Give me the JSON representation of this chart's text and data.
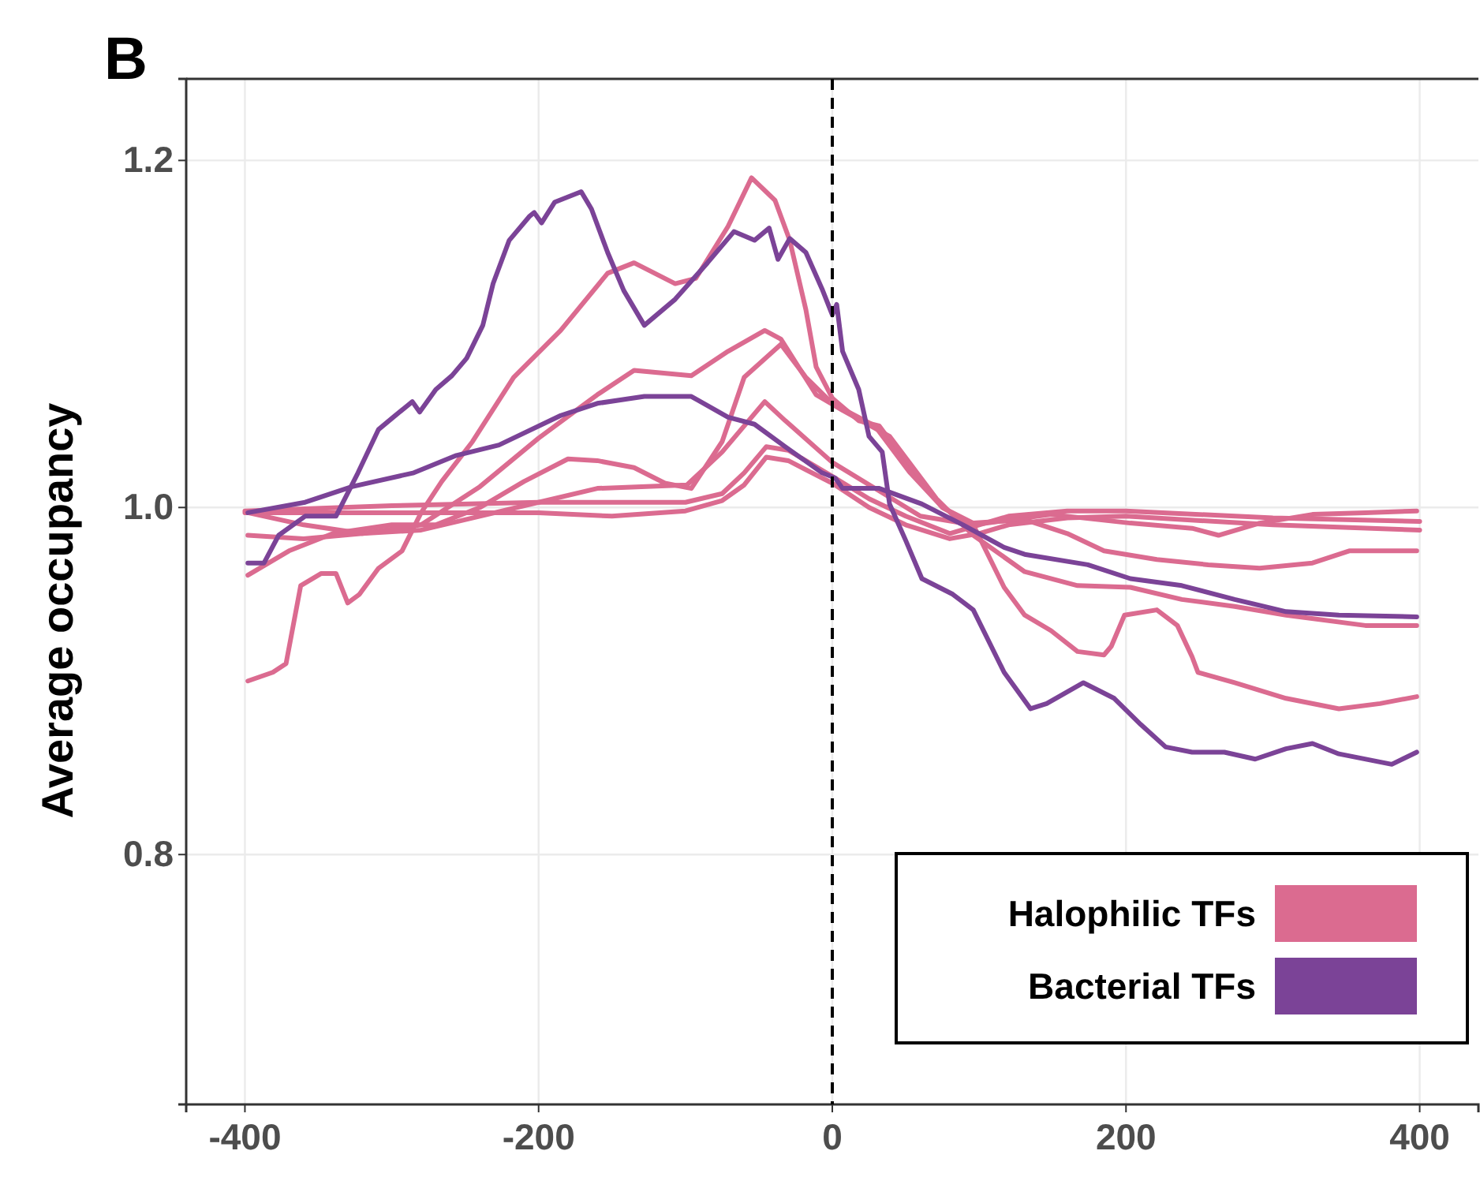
{
  "chart_data": {
    "type": "line",
    "title": "B",
    "ylabel": "Average occupancy",
    "xlim": [
      -440,
      440
    ],
    "ylim": [
      0.656,
      1.247
    ],
    "xticks": [
      -400,
      -200,
      0,
      200,
      400
    ],
    "yticks": [
      {
        "value": 0.8,
        "label": "0.8"
      },
      {
        "value": 1.0,
        "label": "1.0"
      },
      {
        "value": 1.2,
        "label": "1.2"
      }
    ],
    "grid": true,
    "legend": "bottom right",
    "line_style": "solid",
    "marker": "none",
    "ref_lines": [
      {
        "axis": "x",
        "value": 0,
        "color": "#000000",
        "line_style": "dashed"
      }
    ],
    "series": [
      {
        "name": "Halophilic TFs",
        "color": "#db6b90",
        "x": [
          -398,
          -381,
          -372,
          -362,
          -348,
          -338,
          -330,
          -322,
          -309,
          -293,
          -280,
          -266,
          -245,
          -217,
          -185,
          -153,
          -135,
          -107,
          -93,
          -71,
          -55,
          -39,
          -29,
          -18,
          -11,
          0,
          18,
          32,
          53,
          75,
          96,
          117,
          131,
          149,
          167,
          185,
          190,
          199,
          221,
          235,
          245,
          249,
          274,
          309,
          345,
          373,
          398
        ],
        "values": [
          0.9,
          0.905,
          0.91,
          0.955,
          0.962,
          0.962,
          0.945,
          0.95,
          0.965,
          0.975,
          0.997,
          1.015,
          1.038,
          1.075,
          1.102,
          1.135,
          1.141,
          1.129,
          1.132,
          1.162,
          1.19,
          1.177,
          1.154,
          1.114,
          1.081,
          1.063,
          1.05,
          1.047,
          1.023,
          1.0,
          0.99,
          0.954,
          0.938,
          0.929,
          0.917,
          0.915,
          0.92,
          0.938,
          0.941,
          0.932,
          0.914,
          0.905,
          0.899,
          0.89,
          0.884,
          0.887,
          0.891
        ]
      },
      {
        "color": "#db6b90",
        "x": [
          -398,
          -360,
          -320,
          -280,
          -240,
          -200,
          -160,
          -135,
          -96,
          -71,
          -46,
          -35,
          -11,
          7,
          39,
          71,
          96,
          131,
          167,
          203,
          238,
          274,
          309,
          363,
          398
        ],
        "values": [
          0.984,
          0.982,
          0.985,
          0.99,
          1.012,
          1.04,
          1.065,
          1.079,
          1.076,
          1.09,
          1.102,
          1.097,
          1.065,
          1.056,
          1.041,
          1.005,
          0.984,
          0.963,
          0.955,
          0.954,
          0.947,
          0.943,
          0.938,
          0.932,
          0.932
        ]
      },
      {
        "color": "#db6b90",
        "x": [
          -398,
          -370,
          -340,
          -300,
          -270,
          -240,
          -210,
          -180,
          -160,
          -135,
          -114,
          -96,
          -75,
          -60,
          -35,
          -18,
          0,
          29,
          53,
          75,
          96,
          131,
          160,
          185,
          221,
          256,
          291,
          327,
          352,
          398
        ],
        "values": [
          0.961,
          0.975,
          0.985,
          0.99,
          0.99,
          1.0,
          1.015,
          1.028,
          1.027,
          1.023,
          1.014,
          1.011,
          1.038,
          1.075,
          1.094,
          1.075,
          1.06,
          1.047,
          1.02,
          1.0,
          0.991,
          0.993,
          0.985,
          0.975,
          0.97,
          0.967,
          0.965,
          0.968,
          0.975,
          0.975
        ]
      },
      {
        "color": "#db6b90",
        "x": [
          -398,
          -360,
          -320,
          -280,
          -240,
          -200,
          -160,
          -130,
          -99,
          -75,
          -46,
          -32,
          0,
          35,
          60,
          96,
          149,
          203,
          245,
          263,
          291,
          327,
          363,
          398
        ],
        "values": [
          0.997,
          0.99,
          0.985,
          0.987,
          0.995,
          1.003,
          1.011,
          1.012,
          1.013,
          1.032,
          1.061,
          1.05,
          1.026,
          1.008,
          0.995,
          0.99,
          0.996,
          0.991,
          0.988,
          0.984,
          0.991,
          0.996,
          0.997,
          0.998
        ]
      },
      {
        "color": "#db6b90",
        "x": [
          -400,
          -300,
          -200,
          -150,
          -100,
          -75,
          -60,
          -45,
          -30,
          0,
          25,
          50,
          80,
          100,
          120,
          160,
          200,
          300,
          400
        ],
        "values": [
          0.998,
          1.001,
          1.003,
          1.003,
          1.003,
          1.008,
          1.02,
          1.035,
          1.033,
          1.018,
          1.005,
          0.995,
          0.985,
          0.99,
          0.995,
          0.998,
          0.998,
          0.994,
          0.992
        ]
      },
      {
        "color": "#db6b90",
        "x": [
          -400,
          -300,
          -200,
          -150,
          -100,
          -75,
          -60,
          -45,
          -30,
          0,
          25,
          50,
          80,
          100,
          120,
          160,
          200,
          300,
          400
        ],
        "values": [
          0.997,
          0.997,
          0.997,
          0.995,
          0.998,
          1.004,
          1.013,
          1.029,
          1.027,
          1.014,
          1.0,
          0.99,
          0.982,
          0.985,
          0.99,
          0.994,
          0.995,
          0.99,
          0.987
        ]
      },
      {
        "name": "Bacterial TFs",
        "color": "#7b4397",
        "x": [
          -398,
          -387,
          -377,
          -359,
          -338,
          -323,
          -309,
          -299,
          -286,
          -281,
          -270,
          -259,
          -249,
          -238,
          -231,
          -220,
          -206,
          -203,
          -198,
          -189,
          -171,
          -164,
          -153,
          -142,
          -128,
          -107,
          -85,
          -67,
          -53,
          -43,
          -37,
          -29,
          -18,
          -7,
          0,
          3,
          7,
          18,
          25,
          34,
          39,
          50,
          61,
          82,
          96,
          117,
          135,
          146,
          171,
          192,
          210,
          227,
          245,
          267,
          288,
          309,
          327,
          345,
          381,
          398
        ],
        "values": [
          0.968,
          0.968,
          0.984,
          0.995,
          0.995,
          1.02,
          1.045,
          1.052,
          1.061,
          1.055,
          1.068,
          1.076,
          1.086,
          1.105,
          1.129,
          1.154,
          1.168,
          1.17,
          1.164,
          1.176,
          1.182,
          1.172,
          1.147,
          1.125,
          1.105,
          1.12,
          1.141,
          1.159,
          1.154,
          1.161,
          1.143,
          1.155,
          1.147,
          1.126,
          1.111,
          1.117,
          1.09,
          1.068,
          1.041,
          1.032,
          1.002,
          0.981,
          0.959,
          0.95,
          0.941,
          0.905,
          0.884,
          0.887,
          0.899,
          0.89,
          0.875,
          0.862,
          0.859,
          0.859,
          0.855,
          0.861,
          0.864,
          0.858,
          0.852,
          0.859
        ]
      },
      {
        "color": "#7b4397",
        "x": [
          -398,
          -359,
          -327,
          -285,
          -256,
          -227,
          -185,
          -160,
          -128,
          -96,
          -71,
          -53,
          -32,
          -7,
          2,
          7,
          32,
          61,
          89,
          117,
          131,
          174,
          203,
          238,
          274,
          309,
          345,
          398
        ],
        "values": [
          0.997,
          1.003,
          1.012,
          1.02,
          1.03,
          1.036,
          1.053,
          1.06,
          1.064,
          1.064,
          1.052,
          1.048,
          1.035,
          1.02,
          1.017,
          1.011,
          1.011,
          1.002,
          0.99,
          0.977,
          0.973,
          0.967,
          0.959,
          0.955,
          0.947,
          0.94,
          0.938,
          0.937
        ]
      }
    ]
  }
}
